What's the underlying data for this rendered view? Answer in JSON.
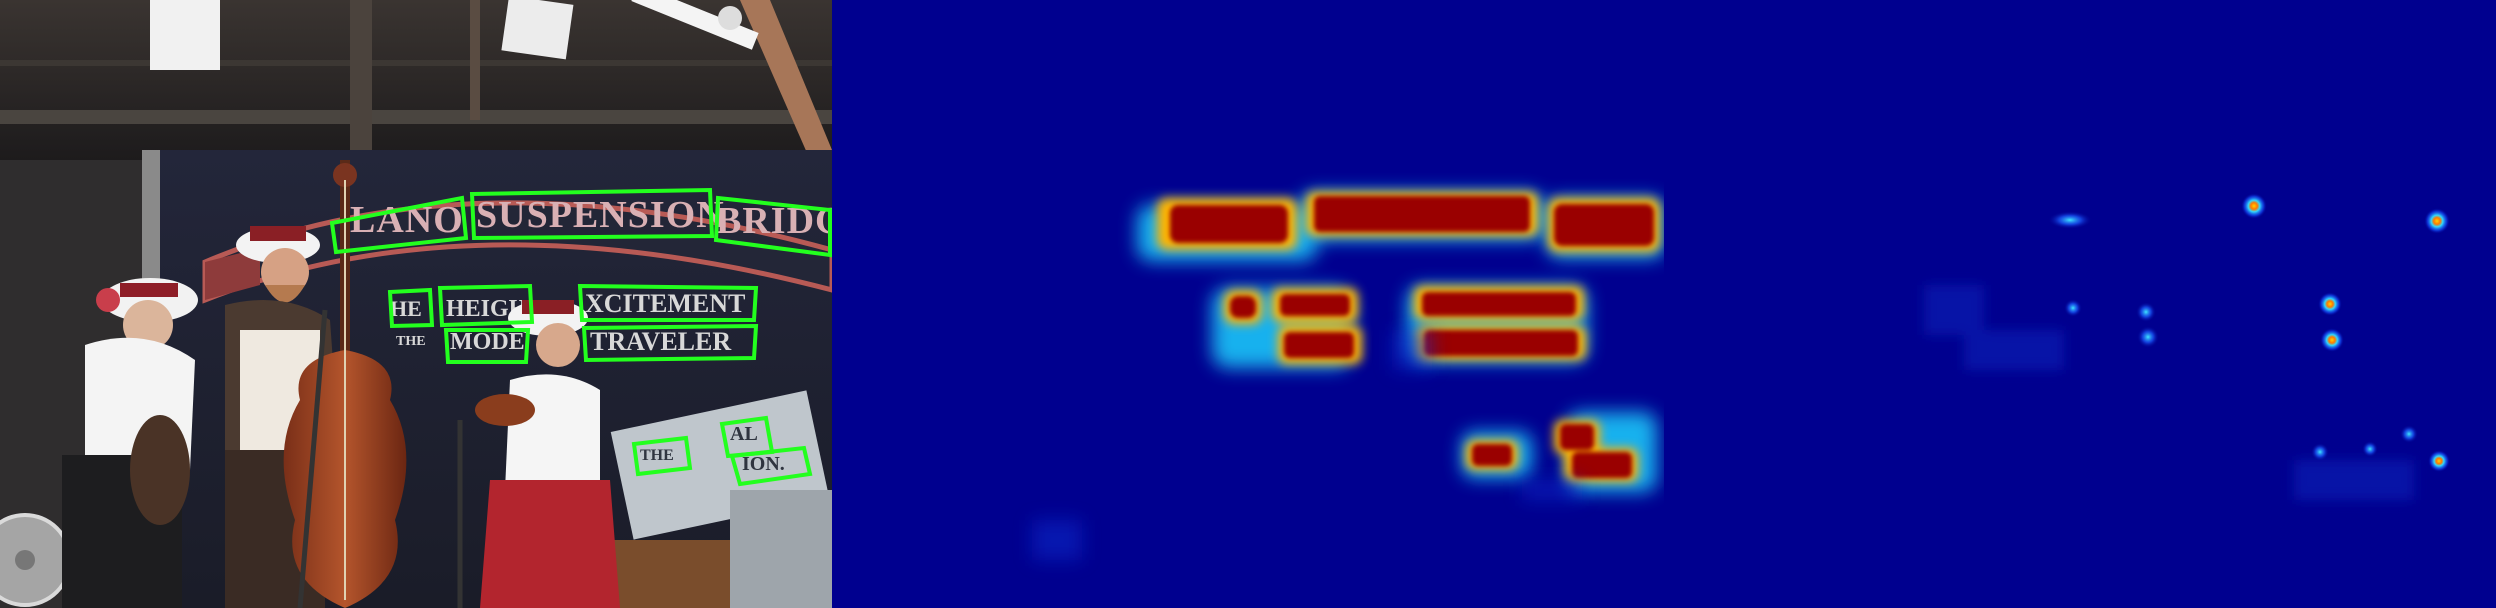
{
  "figure": {
    "panels": [
      "photo-with-detections",
      "text-region-heatmap",
      "character-center-heatmap"
    ]
  },
  "photo": {
    "sign_words": [
      "LANO",
      "SUSPENSION",
      "BRIDG"
    ],
    "sign_line2": [
      "HE",
      "HEIGH",
      "XCITEMENT"
    ],
    "sign_line3": [
      "THE",
      "MODE",
      "TRAVELER"
    ],
    "small_sign": [
      "THE",
      "AL",
      "ION."
    ]
  },
  "colors": {
    "detection_box": "#23ff1e",
    "heat_low": "#00008f",
    "heat_high": "#9a0000"
  },
  "icons": [
    "musician-figure",
    "straw-hat-icon",
    "double-bass-icon",
    "guitar-icon",
    "violin-icon",
    "fan-icon",
    "stage-light-icon"
  ]
}
